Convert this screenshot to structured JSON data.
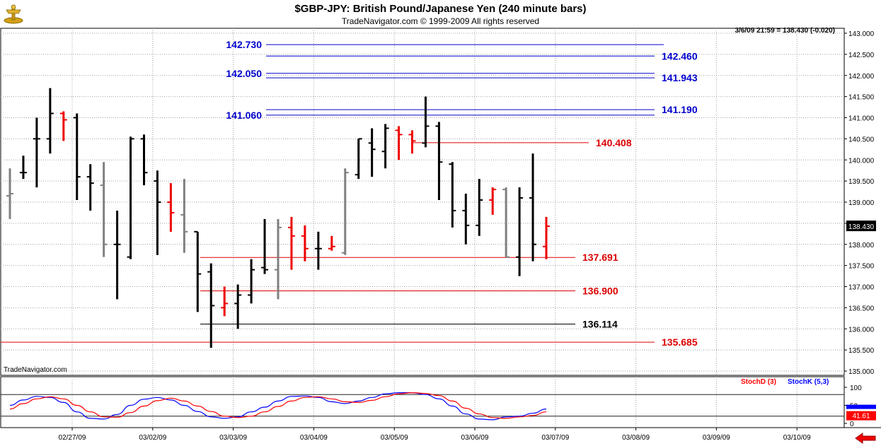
{
  "header": {
    "title": "$GBP-JPY:  British Pound/Japanese Yen  (240 minute bars)",
    "subtitle": "TradeNavigator.com © 1999-2009 All rights reserved",
    "quote": "3/6/09 21:59 = 138.430 (-0.020)"
  },
  "watermark": "TradeNavigator.com",
  "colors": {
    "up": "#000000",
    "down": "#ee0000",
    "neutral": "#808080",
    "blue_level": "#0000cc",
    "red_level": "#dd0000",
    "stoch_k": "#0000ff",
    "stoch_d": "#ff0000"
  },
  "chart_data": [
    {
      "type": "ohlc",
      "ylim": [
        135.0,
        143.0
      ],
      "y_ticks": [
        "135.000",
        "135.500",
        "136.000",
        "136.500",
        "137.000",
        "137.500",
        "138.000",
        "138.500",
        "139.000",
        "139.500",
        "140.000",
        "140.500",
        "141.000",
        "141.500",
        "142.000",
        "142.500",
        "143.000"
      ],
      "x_tick_labels": [
        "02/27/09",
        "03/02/09",
        "03/03/09",
        "03/04/09",
        "03/05/09",
        "03/06/09",
        "03/07/09",
        "03/08/09",
        "03/09/09",
        "03/10/09"
      ],
      "last_price_label": "138.430",
      "bars": [
        {
          "o": 139.15,
          "h": 139.8,
          "l": 138.6,
          "c": 139.2,
          "k": "n"
        },
        {
          "o": 139.7,
          "h": 140.1,
          "l": 139.55,
          "c": 139.7,
          "k": "u"
        },
        {
          "o": 140.5,
          "h": 141.0,
          "l": 139.35,
          "c": 140.5,
          "k": "u"
        },
        {
          "o": 140.5,
          "h": 141.7,
          "l": 140.15,
          "c": 141.1,
          "k": "u"
        },
        {
          "o": 141.1,
          "h": 141.15,
          "l": 140.45,
          "c": 140.95,
          "k": "d"
        },
        {
          "o": 141.0,
          "h": 141.1,
          "l": 139.05,
          "c": 139.6,
          "k": "u"
        },
        {
          "o": 139.6,
          "h": 139.9,
          "l": 138.8,
          "c": 139.45,
          "k": "u"
        },
        {
          "o": 139.4,
          "h": 139.95,
          "l": 137.7,
          "c": 138.0,
          "k": "n"
        },
        {
          "o": 138.0,
          "h": 138.8,
          "l": 136.7,
          "c": 138.0,
          "k": "u"
        },
        {
          "o": 137.7,
          "h": 140.55,
          "l": 137.65,
          "c": 140.5,
          "k": "u"
        },
        {
          "o": 140.5,
          "h": 140.6,
          "l": 139.4,
          "c": 139.7,
          "k": "u"
        },
        {
          "o": 139.5,
          "h": 139.75,
          "l": 137.75,
          "c": 139.0,
          "k": "u"
        },
        {
          "o": 139.0,
          "h": 139.45,
          "l": 138.3,
          "c": 138.75,
          "k": "d"
        },
        {
          "o": 138.7,
          "h": 139.55,
          "l": 137.8,
          "c": 138.3,
          "k": "n"
        },
        {
          "o": 138.3,
          "h": 138.3,
          "l": 136.4,
          "c": 137.3,
          "k": "u"
        },
        {
          "o": 137.35,
          "h": 137.55,
          "l": 135.55,
          "c": 136.55,
          "k": "u"
        },
        {
          "o": 136.5,
          "h": 137.0,
          "l": 136.3,
          "c": 136.6,
          "k": "d"
        },
        {
          "o": 136.6,
          "h": 137.05,
          "l": 136.0,
          "c": 136.8,
          "k": "u"
        },
        {
          "o": 136.8,
          "h": 137.65,
          "l": 136.6,
          "c": 137.4,
          "k": "u"
        },
        {
          "o": 137.45,
          "h": 138.6,
          "l": 137.3,
          "c": 137.4,
          "k": "u"
        },
        {
          "o": 137.4,
          "h": 138.6,
          "l": 136.7,
          "c": 138.4,
          "k": "n"
        },
        {
          "o": 138.4,
          "h": 138.65,
          "l": 137.4,
          "c": 138.2,
          "k": "d"
        },
        {
          "o": 138.2,
          "h": 138.45,
          "l": 137.6,
          "c": 137.9,
          "k": "d"
        },
        {
          "o": 137.9,
          "h": 138.3,
          "l": 137.4,
          "c": 137.9,
          "k": "u"
        },
        {
          "o": 137.9,
          "h": 138.2,
          "l": 137.85,
          "c": 137.95,
          "k": "d"
        },
        {
          "o": 137.8,
          "h": 139.8,
          "l": 137.75,
          "c": 139.7,
          "k": "n"
        },
        {
          "o": 139.65,
          "h": 140.5,
          "l": 139.55,
          "c": 140.5,
          "k": "u"
        },
        {
          "o": 140.4,
          "h": 140.75,
          "l": 139.6,
          "c": 140.25,
          "k": "u"
        },
        {
          "o": 140.2,
          "h": 140.85,
          "l": 139.8,
          "c": 140.75,
          "k": "u"
        },
        {
          "o": 140.7,
          "h": 140.8,
          "l": 140.0,
          "c": 140.6,
          "k": "d"
        },
        {
          "o": 140.6,
          "h": 140.7,
          "l": 140.15,
          "c": 140.45,
          "k": "d"
        },
        {
          "o": 140.4,
          "h": 141.5,
          "l": 140.3,
          "c": 140.8,
          "k": "u"
        },
        {
          "o": 140.8,
          "h": 140.9,
          "l": 139.05,
          "c": 139.95,
          "k": "u"
        },
        {
          "o": 139.9,
          "h": 139.95,
          "l": 138.4,
          "c": 138.8,
          "k": "u"
        },
        {
          "o": 138.8,
          "h": 139.2,
          "l": 138.0,
          "c": 138.45,
          "k": "u"
        },
        {
          "o": 138.45,
          "h": 139.55,
          "l": 138.2,
          "c": 139.05,
          "k": "u"
        },
        {
          "o": 139.05,
          "h": 139.35,
          "l": 138.7,
          "c": 139.3,
          "k": "d"
        },
        {
          "o": 139.3,
          "h": 139.35,
          "l": 137.7,
          "c": 137.7,
          "k": "n"
        },
        {
          "o": 137.7,
          "h": 139.35,
          "l": 137.25,
          "c": 139.1,
          "k": "u"
        },
        {
          "o": 139.1,
          "h": 140.15,
          "l": 137.6,
          "c": 138.0,
          "k": "u"
        },
        {
          "o": 137.95,
          "h": 138.65,
          "l": 137.65,
          "c": 138.43,
          "k": "d"
        }
      ],
      "levels": [
        {
          "value": 142.73,
          "label": "142.730",
          "group": "blue",
          "label_side": "left"
        },
        {
          "value": 142.46,
          "label": "142.460",
          "group": "blue",
          "label_side": "right"
        },
        {
          "value": 142.05,
          "label": "142.050",
          "group": "blue",
          "label_side": "left"
        },
        {
          "value": 141.943,
          "label": "141.943",
          "group": "blue",
          "label_side": "right"
        },
        {
          "value": 141.19,
          "label": "141.190",
          "group": "blue",
          "label_side": "right"
        },
        {
          "value": 141.06,
          "label": "141.060",
          "group": "blue",
          "label_side": "left"
        },
        {
          "value": 140.408,
          "label": "140.408",
          "group": "red",
          "label_side": "right"
        },
        {
          "value": 137.691,
          "label": "137.691",
          "group": "red",
          "label_side": "right"
        },
        {
          "value": 136.9,
          "label": "136.900",
          "group": "red",
          "label_side": "right"
        },
        {
          "value": 136.114,
          "label": "136.114",
          "group": "black",
          "label_side": "right"
        },
        {
          "value": 135.685,
          "label": "135.685",
          "group": "red",
          "label_side": "right"
        }
      ]
    },
    {
      "type": "line",
      "ylim": [
        0,
        100
      ],
      "y_ticks": [
        "0",
        "50",
        "100"
      ],
      "legend": [
        {
          "name": "StochD (3)",
          "color": "#ff0000"
        },
        {
          "name": "StochK (5,3)",
          "color": "#0000ff"
        }
      ],
      "last_value_label": "41.61",
      "series": [
        {
          "name": "StochK (5,3)",
          "values": [
            50,
            65,
            75,
            72,
            58,
            32,
            14,
            12,
            25,
            50,
            67,
            72,
            65,
            50,
            33,
            18,
            14,
            18,
            32,
            45,
            62,
            75,
            76,
            72,
            60,
            55,
            62,
            72,
            82,
            85,
            85,
            80,
            68,
            48,
            26,
            12,
            10,
            18,
            20,
            28,
            40
          ]
        },
        {
          "name": "StochD (3)",
          "values": [
            40,
            55,
            68,
            74,
            68,
            50,
            32,
            18,
            17,
            30,
            48,
            63,
            70,
            62,
            48,
            33,
            20,
            16,
            20,
            32,
            47,
            62,
            72,
            74,
            68,
            60,
            58,
            64,
            74,
            82,
            85,
            83,
            77,
            62,
            42,
            26,
            16,
            14,
            18,
            22,
            32
          ]
        }
      ]
    }
  ]
}
